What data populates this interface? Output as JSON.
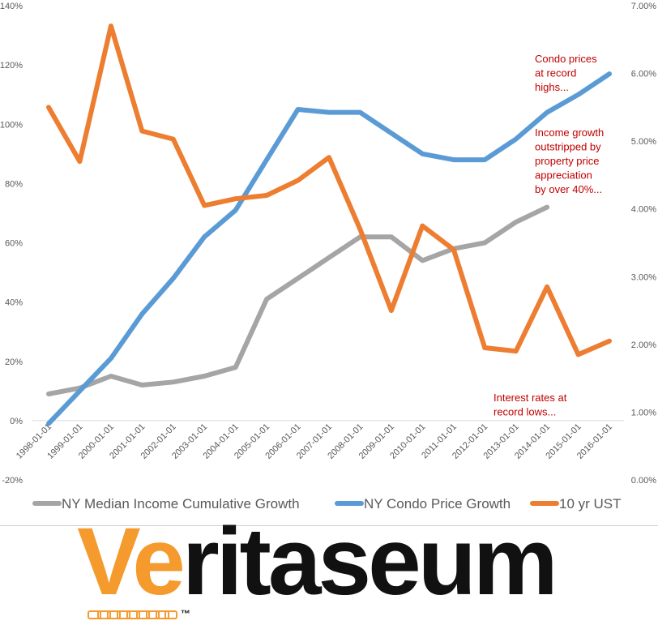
{
  "chart_data": {
    "type": "line",
    "title": "",
    "x": [
      "1998-01-01",
      "1999-01-01",
      "2000-01-01",
      "2001-01-01",
      "2002-01-01",
      "2003-01-01",
      "2004-01-01",
      "2005-01-01",
      "2006-01-01",
      "2007-01-01",
      "2008-01-01",
      "2009-01-01",
      "2010-01-01",
      "2011-01-01",
      "2012-01-01",
      "2013-01-01",
      "2014-01-01",
      "2015-01-01",
      "2016-01-01"
    ],
    "y_left": {
      "ticks": [
        "-20%",
        "0%",
        "20%",
        "40%",
        "60%",
        "80%",
        "100%",
        "120%",
        "140%"
      ],
      "range": [
        -20,
        140
      ]
    },
    "y_right": {
      "ticks": [
        "0.00%",
        "1.00%",
        "2.00%",
        "3.00%",
        "4.00%",
        "5.00%",
        "6.00%",
        "7.00%"
      ],
      "range": [
        0,
        7
      ]
    },
    "series": [
      {
        "name": "NY Median Income Cumulative Growth",
        "axis": "left",
        "color": "#a5a5a5",
        "values": [
          9,
          11,
          15,
          12,
          13,
          15,
          18,
          41,
          48,
          55,
          62,
          62,
          54,
          58,
          60,
          67,
          72,
          null,
          null
        ]
      },
      {
        "name": "NY Condo Price Growth",
        "axis": "left",
        "color": "#5b9bd5",
        "values": [
          -1,
          10,
          21,
          36,
          48,
          62,
          71,
          88,
          105,
          104,
          104,
          97,
          90,
          88,
          88,
          95,
          104,
          110,
          117
        ]
      },
      {
        "name": "10 yr UST",
        "axis": "right",
        "color": "#ed7d31",
        "values": [
          5.5,
          4.7,
          6.7,
          5.15,
          5.03,
          4.05,
          4.15,
          4.2,
          4.42,
          4.76,
          3.7,
          2.5,
          3.75,
          3.4,
          1.95,
          1.9,
          2.85,
          1.85,
          2.05
        ]
      }
    ],
    "annotations": [
      {
        "id": "condo",
        "lines": [
          "Condo prices",
          "at record",
          "highs..."
        ]
      },
      {
        "id": "income",
        "lines": [
          "Income growth",
          "outstripped by",
          "property price",
          "appreciation",
          "by over 40%..."
        ]
      },
      {
        "id": "rates",
        "lines": [
          "Interest rates at",
          "record lows..."
        ]
      }
    ],
    "legend": "bottom",
    "grid": false
  },
  "logo": {
    "ve": "Ve",
    "rest": "ritaseum",
    "tm": "™"
  }
}
